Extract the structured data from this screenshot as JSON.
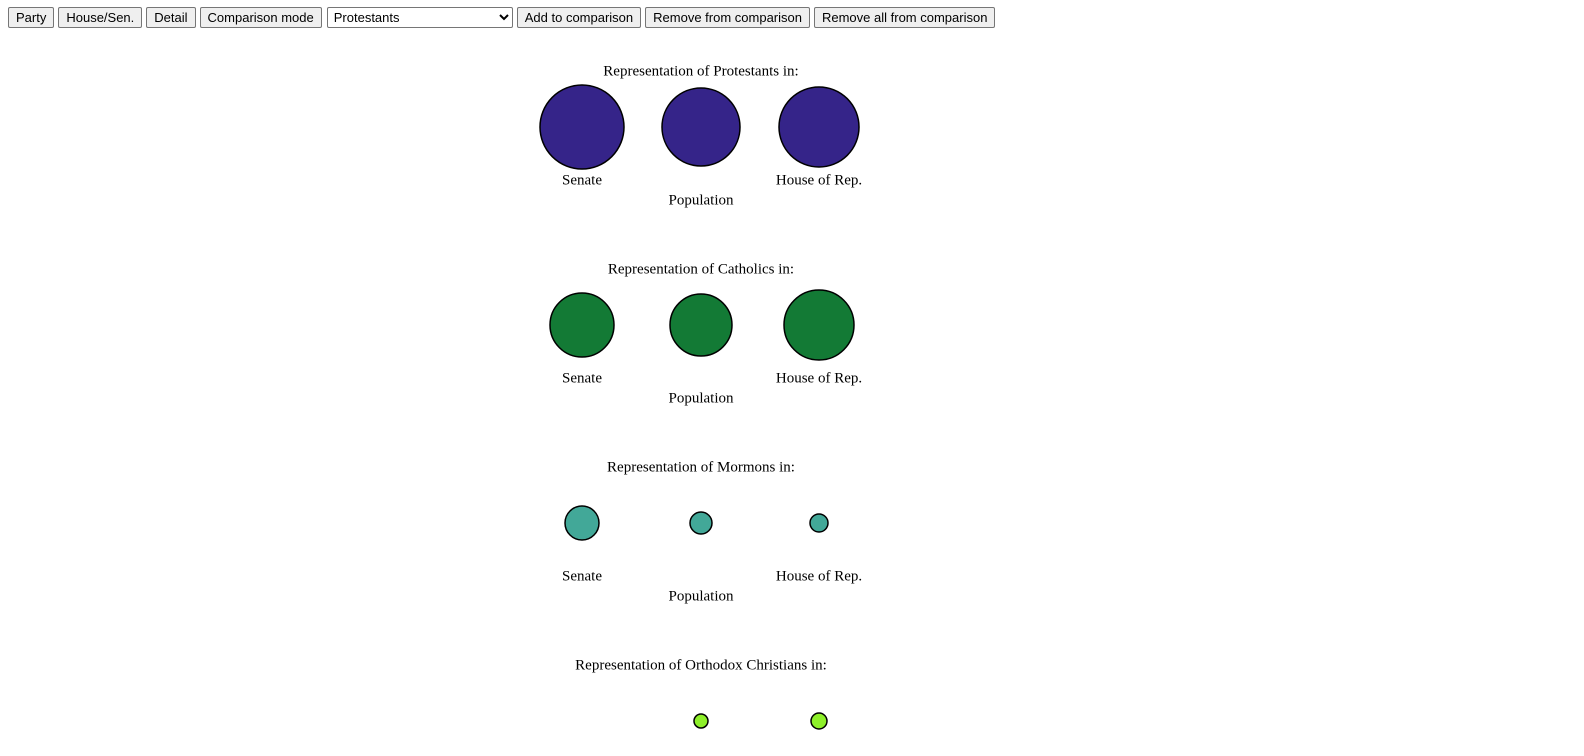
{
  "toolbar": {
    "buttons": [
      "Party",
      "House/Sen.",
      "Detail",
      "Comparison mode"
    ],
    "select": "Protestants",
    "actions": [
      "Add to comparison",
      "Remove from comparison",
      "Remove all from comparison"
    ]
  },
  "groups": [
    {
      "title": "Representation of Protestants in:",
      "labels": [
        "Senate",
        "Population",
        "House of Rep."
      ]
    },
    {
      "title": "Representation of Catholics in:",
      "labels": [
        "Senate",
        "Population",
        "House of Rep."
      ]
    },
    {
      "title": "Representation of Mormons in:",
      "labels": [
        "Senate",
        "Population",
        "House of Rep."
      ]
    },
    {
      "title": "Representation of Orthodox Christians in:"
    }
  ]
}
